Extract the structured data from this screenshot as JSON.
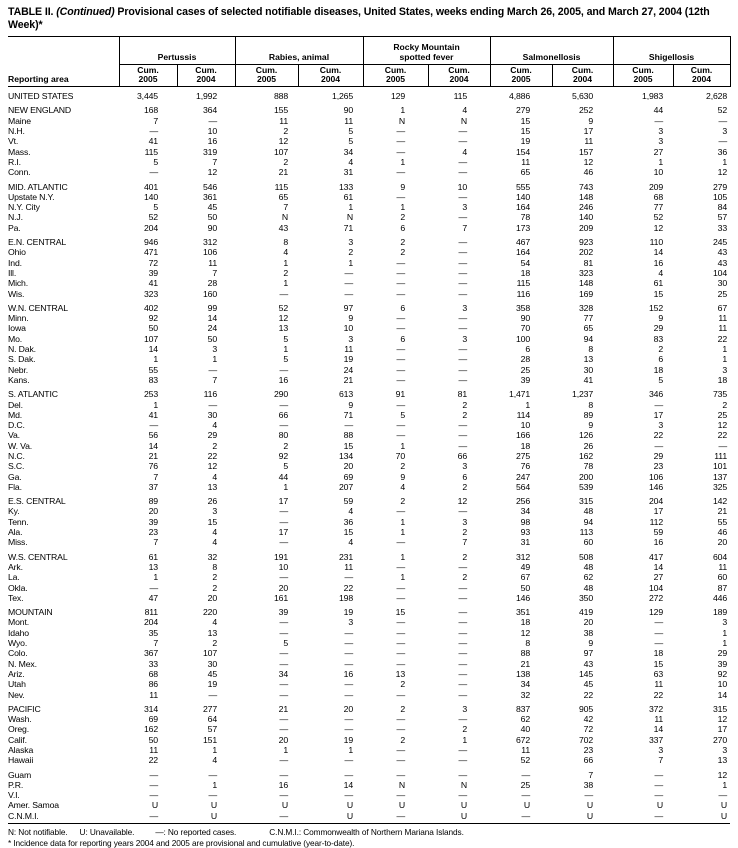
{
  "title": {
    "prefix": "TABLE II.",
    "continued": "(Continued)",
    "rest": "Provisional cases of selected notifiable diseases, United States, weeks ending March 26, 2005, and March 27, 2004 (12th Week)*"
  },
  "header": {
    "reporting_area": "Reporting area",
    "groups": [
      {
        "name": "Pertussis"
      },
      {
        "name": "Rabies, animal"
      },
      {
        "name": "Rocky Mountain\nspotted fever"
      },
      {
        "name": "Salmonellosis"
      },
      {
        "name": "Shigellosis"
      }
    ],
    "subcolumns": [
      {
        "line1": "Cum.",
        "line2": "2005"
      },
      {
        "line1": "Cum.",
        "line2": "2004"
      }
    ]
  },
  "rows": [
    {
      "area": "UNITED STATES",
      "section": true,
      "values": [
        "3,445",
        "1,992",
        "888",
        "1,265",
        "129",
        "115",
        "4,886",
        "5,630",
        "1,983",
        "2,628"
      ]
    },
    {
      "area": "NEW ENGLAND",
      "section": true,
      "values": [
        "168",
        "364",
        "155",
        "90",
        "1",
        "4",
        "279",
        "252",
        "44",
        "52"
      ]
    },
    {
      "area": "Maine",
      "section": false,
      "values": [
        "7",
        "—",
        "11",
        "11",
        "N",
        "N",
        "15",
        "9",
        "—",
        "—"
      ]
    },
    {
      "area": "N.H.",
      "section": false,
      "values": [
        "—",
        "10",
        "2",
        "5",
        "—",
        "—",
        "15",
        "17",
        "3",
        "3"
      ]
    },
    {
      "area": "Vt.",
      "section": false,
      "values": [
        "41",
        "16",
        "12",
        "5",
        "—",
        "—",
        "19",
        "11",
        "3",
        "—"
      ]
    },
    {
      "area": "Mass.",
      "section": false,
      "values": [
        "115",
        "319",
        "107",
        "34",
        "—",
        "4",
        "154",
        "157",
        "27",
        "36"
      ]
    },
    {
      "area": "R.I.",
      "section": false,
      "values": [
        "5",
        "7",
        "2",
        "4",
        "1",
        "—",
        "11",
        "12",
        "1",
        "1"
      ]
    },
    {
      "area": "Conn.",
      "section": false,
      "values": [
        "—",
        "12",
        "21",
        "31",
        "—",
        "—",
        "65",
        "46",
        "10",
        "12"
      ]
    },
    {
      "area": "MID. ATLANTIC",
      "section": true,
      "values": [
        "401",
        "546",
        "115",
        "133",
        "9",
        "10",
        "555",
        "743",
        "209",
        "279"
      ]
    },
    {
      "area": "Upstate N.Y.",
      "section": false,
      "values": [
        "140",
        "361",
        "65",
        "61",
        "—",
        "—",
        "140",
        "148",
        "68",
        "105"
      ]
    },
    {
      "area": "N.Y. City",
      "section": false,
      "values": [
        "5",
        "45",
        "7",
        "1",
        "1",
        "3",
        "164",
        "246",
        "77",
        "84"
      ]
    },
    {
      "area": "N.J.",
      "section": false,
      "values": [
        "52",
        "50",
        "N",
        "N",
        "2",
        "—",
        "78",
        "140",
        "52",
        "57"
      ]
    },
    {
      "area": "Pa.",
      "section": false,
      "values": [
        "204",
        "90",
        "43",
        "71",
        "6",
        "7",
        "173",
        "209",
        "12",
        "33"
      ]
    },
    {
      "area": "E.N. CENTRAL",
      "section": true,
      "values": [
        "946",
        "312",
        "8",
        "3",
        "2",
        "—",
        "467",
        "923",
        "110",
        "245"
      ]
    },
    {
      "area": "Ohio",
      "section": false,
      "values": [
        "471",
        "106",
        "4",
        "2",
        "2",
        "—",
        "164",
        "202",
        "14",
        "43"
      ]
    },
    {
      "area": "Ind.",
      "section": false,
      "values": [
        "72",
        "11",
        "1",
        "1",
        "—",
        "—",
        "54",
        "81",
        "16",
        "43"
      ]
    },
    {
      "area": "Ill.",
      "section": false,
      "values": [
        "39",
        "7",
        "2",
        "—",
        "—",
        "—",
        "18",
        "323",
        "4",
        "104"
      ]
    },
    {
      "area": "Mich.",
      "section": false,
      "values": [
        "41",
        "28",
        "1",
        "—",
        "—",
        "—",
        "115",
        "148",
        "61",
        "30"
      ]
    },
    {
      "area": "Wis.",
      "section": false,
      "values": [
        "323",
        "160",
        "—",
        "—",
        "—",
        "—",
        "116",
        "169",
        "15",
        "25"
      ]
    },
    {
      "area": "W.N. CENTRAL",
      "section": true,
      "values": [
        "402",
        "99",
        "52",
        "97",
        "6",
        "3",
        "358",
        "328",
        "152",
        "67"
      ]
    },
    {
      "area": "Minn.",
      "section": false,
      "values": [
        "92",
        "14",
        "12",
        "9",
        "—",
        "—",
        "90",
        "77",
        "9",
        "11"
      ]
    },
    {
      "area": "Iowa",
      "section": false,
      "values": [
        "50",
        "24",
        "13",
        "10",
        "—",
        "—",
        "70",
        "65",
        "29",
        "11"
      ]
    },
    {
      "area": "Mo.",
      "section": false,
      "values": [
        "107",
        "50",
        "5",
        "3",
        "6",
        "3",
        "100",
        "94",
        "83",
        "22"
      ]
    },
    {
      "area": "N. Dak.",
      "section": false,
      "values": [
        "14",
        "3",
        "1",
        "11",
        "—",
        "—",
        "6",
        "8",
        "2",
        "1"
      ]
    },
    {
      "area": "S. Dak.",
      "section": false,
      "values": [
        "1",
        "1",
        "5",
        "19",
        "—",
        "—",
        "28",
        "13",
        "6",
        "1"
      ]
    },
    {
      "area": "Nebr.",
      "section": false,
      "values": [
        "55",
        "—",
        "—",
        "24",
        "—",
        "—",
        "25",
        "30",
        "18",
        "3"
      ]
    },
    {
      "area": "Kans.",
      "section": false,
      "values": [
        "83",
        "7",
        "16",
        "21",
        "—",
        "—",
        "39",
        "41",
        "5",
        "18"
      ]
    },
    {
      "area": "S. ATLANTIC",
      "section": true,
      "values": [
        "253",
        "116",
        "290",
        "613",
        "91",
        "81",
        "1,471",
        "1,237",
        "346",
        "735"
      ]
    },
    {
      "area": "Del.",
      "section": false,
      "values": [
        "1",
        "—",
        "—",
        "9",
        "—",
        "2",
        "1",
        "8",
        "—",
        "2"
      ]
    },
    {
      "area": "Md.",
      "section": false,
      "values": [
        "41",
        "30",
        "66",
        "71",
        "5",
        "2",
        "114",
        "89",
        "17",
        "25"
      ]
    },
    {
      "area": "D.C.",
      "section": false,
      "values": [
        "—",
        "4",
        "—",
        "—",
        "—",
        "—",
        "10",
        "9",
        "3",
        "12"
      ]
    },
    {
      "area": "Va.",
      "section": false,
      "values": [
        "56",
        "29",
        "80",
        "88",
        "—",
        "—",
        "166",
        "126",
        "22",
        "22"
      ]
    },
    {
      "area": "W. Va.",
      "section": false,
      "values": [
        "14",
        "2",
        "2",
        "15",
        "1",
        "—",
        "18",
        "26",
        "—",
        "—"
      ]
    },
    {
      "area": "N.C.",
      "section": false,
      "values": [
        "21",
        "22",
        "92",
        "134",
        "70",
        "66",
        "275",
        "162",
        "29",
        "111"
      ]
    },
    {
      "area": "S.C.",
      "section": false,
      "values": [
        "76",
        "12",
        "5",
        "20",
        "2",
        "3",
        "76",
        "78",
        "23",
        "101"
      ]
    },
    {
      "area": "Ga.",
      "section": false,
      "values": [
        "7",
        "4",
        "44",
        "69",
        "9",
        "6",
        "247",
        "200",
        "106",
        "137"
      ]
    },
    {
      "area": "Fla.",
      "section": false,
      "values": [
        "37",
        "13",
        "1",
        "207",
        "4",
        "2",
        "564",
        "539",
        "146",
        "325"
      ]
    },
    {
      "area": "E.S. CENTRAL",
      "section": true,
      "values": [
        "89",
        "26",
        "17",
        "59",
        "2",
        "12",
        "256",
        "315",
        "204",
        "142"
      ]
    },
    {
      "area": "Ky.",
      "section": false,
      "values": [
        "20",
        "3",
        "—",
        "4",
        "—",
        "—",
        "34",
        "48",
        "17",
        "21"
      ]
    },
    {
      "area": "Tenn.",
      "section": false,
      "values": [
        "39",
        "15",
        "—",
        "36",
        "1",
        "3",
        "98",
        "94",
        "112",
        "55"
      ]
    },
    {
      "area": "Ala.",
      "section": false,
      "values": [
        "23",
        "4",
        "17",
        "15",
        "1",
        "2",
        "93",
        "113",
        "59",
        "46"
      ]
    },
    {
      "area": "Miss.",
      "section": false,
      "values": [
        "7",
        "4",
        "—",
        "4",
        "—",
        "7",
        "31",
        "60",
        "16",
        "20"
      ]
    },
    {
      "area": "W.S. CENTRAL",
      "section": true,
      "values": [
        "61",
        "32",
        "191",
        "231",
        "1",
        "2",
        "312",
        "508",
        "417",
        "604"
      ]
    },
    {
      "area": "Ark.",
      "section": false,
      "values": [
        "13",
        "8",
        "10",
        "11",
        "—",
        "—",
        "49",
        "48",
        "14",
        "11"
      ]
    },
    {
      "area": "La.",
      "section": false,
      "values": [
        "1",
        "2",
        "—",
        "—",
        "1",
        "2",
        "67",
        "62",
        "27",
        "60"
      ]
    },
    {
      "area": "Okla.",
      "section": false,
      "values": [
        "—",
        "2",
        "20",
        "22",
        "—",
        "—",
        "50",
        "48",
        "104",
        "87"
      ]
    },
    {
      "area": "Tex.",
      "section": false,
      "values": [
        "47",
        "20",
        "161",
        "198",
        "—",
        "—",
        "146",
        "350",
        "272",
        "446"
      ]
    },
    {
      "area": "MOUNTAIN",
      "section": true,
      "values": [
        "811",
        "220",
        "39",
        "19",
        "15",
        "—",
        "351",
        "419",
        "129",
        "189"
      ]
    },
    {
      "area": "Mont.",
      "section": false,
      "values": [
        "204",
        "4",
        "—",
        "3",
        "—",
        "—",
        "18",
        "20",
        "—",
        "3"
      ]
    },
    {
      "area": "Idaho",
      "section": false,
      "values": [
        "35",
        "13",
        "—",
        "—",
        "—",
        "—",
        "12",
        "38",
        "—",
        "1"
      ]
    },
    {
      "area": "Wyo.",
      "section": false,
      "values": [
        "7",
        "2",
        "5",
        "—",
        "—",
        "—",
        "8",
        "9",
        "—",
        "1"
      ]
    },
    {
      "area": "Colo.",
      "section": false,
      "values": [
        "367",
        "107",
        "—",
        "—",
        "—",
        "—",
        "88",
        "97",
        "18",
        "29"
      ]
    },
    {
      "area": "N. Mex.",
      "section": false,
      "values": [
        "33",
        "30",
        "—",
        "—",
        "—",
        "—",
        "21",
        "43",
        "15",
        "39"
      ]
    },
    {
      "area": "Ariz.",
      "section": false,
      "values": [
        "68",
        "45",
        "34",
        "16",
        "13",
        "—",
        "138",
        "145",
        "63",
        "92"
      ]
    },
    {
      "area": "Utah",
      "section": false,
      "values": [
        "86",
        "19",
        "—",
        "—",
        "2",
        "—",
        "34",
        "45",
        "11",
        "10"
      ]
    },
    {
      "area": "Nev.",
      "section": false,
      "values": [
        "11",
        "—",
        "—",
        "—",
        "—",
        "—",
        "32",
        "22",
        "22",
        "14"
      ]
    },
    {
      "area": "PACIFIC",
      "section": true,
      "values": [
        "314",
        "277",
        "21",
        "20",
        "2",
        "3",
        "837",
        "905",
        "372",
        "315"
      ]
    },
    {
      "area": "Wash.",
      "section": false,
      "values": [
        "69",
        "64",
        "—",
        "—",
        "—",
        "—",
        "62",
        "42",
        "11",
        "12"
      ]
    },
    {
      "area": "Oreg.",
      "section": false,
      "values": [
        "162",
        "57",
        "—",
        "—",
        "—",
        "2",
        "40",
        "72",
        "14",
        "17"
      ]
    },
    {
      "area": "Calif.",
      "section": false,
      "values": [
        "50",
        "151",
        "20",
        "19",
        "2",
        "1",
        "672",
        "702",
        "337",
        "270"
      ]
    },
    {
      "area": "Alaska",
      "section": false,
      "values": [
        "11",
        "1",
        "1",
        "1",
        "—",
        "—",
        "11",
        "23",
        "3",
        "3"
      ]
    },
    {
      "area": "Hawaii",
      "section": false,
      "values": [
        "22",
        "4",
        "—",
        "—",
        "—",
        "—",
        "52",
        "66",
        "7",
        "13"
      ]
    },
    {
      "area": "Guam",
      "section": true,
      "values": [
        "—",
        "—",
        "—",
        "—",
        "—",
        "—",
        "—",
        "7",
        "—",
        "12"
      ]
    },
    {
      "area": "P.R.",
      "section": false,
      "values": [
        "—",
        "1",
        "16",
        "14",
        "N",
        "N",
        "25",
        "38",
        "—",
        "1"
      ]
    },
    {
      "area": "V.I.",
      "section": false,
      "values": [
        "—",
        "—",
        "—",
        "—",
        "—",
        "—",
        "—",
        "—",
        "—",
        "—"
      ]
    },
    {
      "area": "Amer. Samoa",
      "section": false,
      "values": [
        "U",
        "U",
        "U",
        "U",
        "U",
        "U",
        "U",
        "U",
        "U",
        "U"
      ]
    },
    {
      "area": "C.N.M.I.",
      "section": false,
      "values": [
        "—",
        "U",
        "—",
        "U",
        "—",
        "U",
        "—",
        "U",
        "—",
        "U"
      ]
    }
  ],
  "footnotes": {
    "legend": [
      "N: Not notifiable.",
      "U: Unavailable.",
      "—: No reported cases.",
      "C.N.M.I.: Commonwealth of Northern Mariana Islands."
    ],
    "provisional": "* Incidence data for reporting years 2004 and 2005 are provisional and cumulative (year-to-date)."
  }
}
